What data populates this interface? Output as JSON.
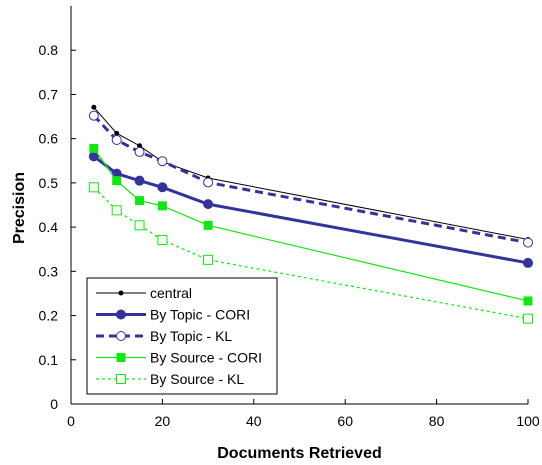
{
  "chart_data": {
    "type": "line",
    "xlabel": "Documents Retrieved",
    "ylabel": "Precision",
    "xlim": [
      0,
      100
    ],
    "ylim": [
      0,
      0.9
    ],
    "xticks": [
      0,
      20,
      40,
      60,
      80,
      100
    ],
    "yticks": [
      0,
      0.1,
      0.2,
      0.3,
      0.4,
      0.5,
      0.6,
      0.7,
      0.8
    ],
    "grid": false,
    "legend_position": "bottom-left",
    "x": [
      5,
      10,
      15,
      20,
      30,
      100
    ],
    "series": [
      {
        "name": "central",
        "values": [
          0.671,
          0.612,
          0.584,
          0.548,
          0.511,
          0.372
        ],
        "color": "#000000",
        "line": "solid",
        "marker": "dot"
      },
      {
        "name": "By Topic - CORI",
        "values": [
          0.56,
          0.521,
          0.505,
          0.49,
          0.452,
          0.319
        ],
        "color": "#33339a",
        "line": "solid",
        "marker": "filled-circle"
      },
      {
        "name": "By Topic - KL",
        "values": [
          0.652,
          0.597,
          0.57,
          0.549,
          0.501,
          0.365
        ],
        "color": "#33339a",
        "line": "dashed",
        "marker": "open-circle"
      },
      {
        "name": "By Source - CORI",
        "values": [
          0.578,
          0.505,
          0.46,
          0.448,
          0.404,
          0.233
        ],
        "color": "#14e514",
        "line": "solid",
        "marker": "filled-square"
      },
      {
        "name": "By Source - KL",
        "values": [
          0.49,
          0.438,
          0.404,
          0.371,
          0.326,
          0.193
        ],
        "color": "#14e514",
        "line": "dotted",
        "marker": "open-square"
      }
    ]
  }
}
